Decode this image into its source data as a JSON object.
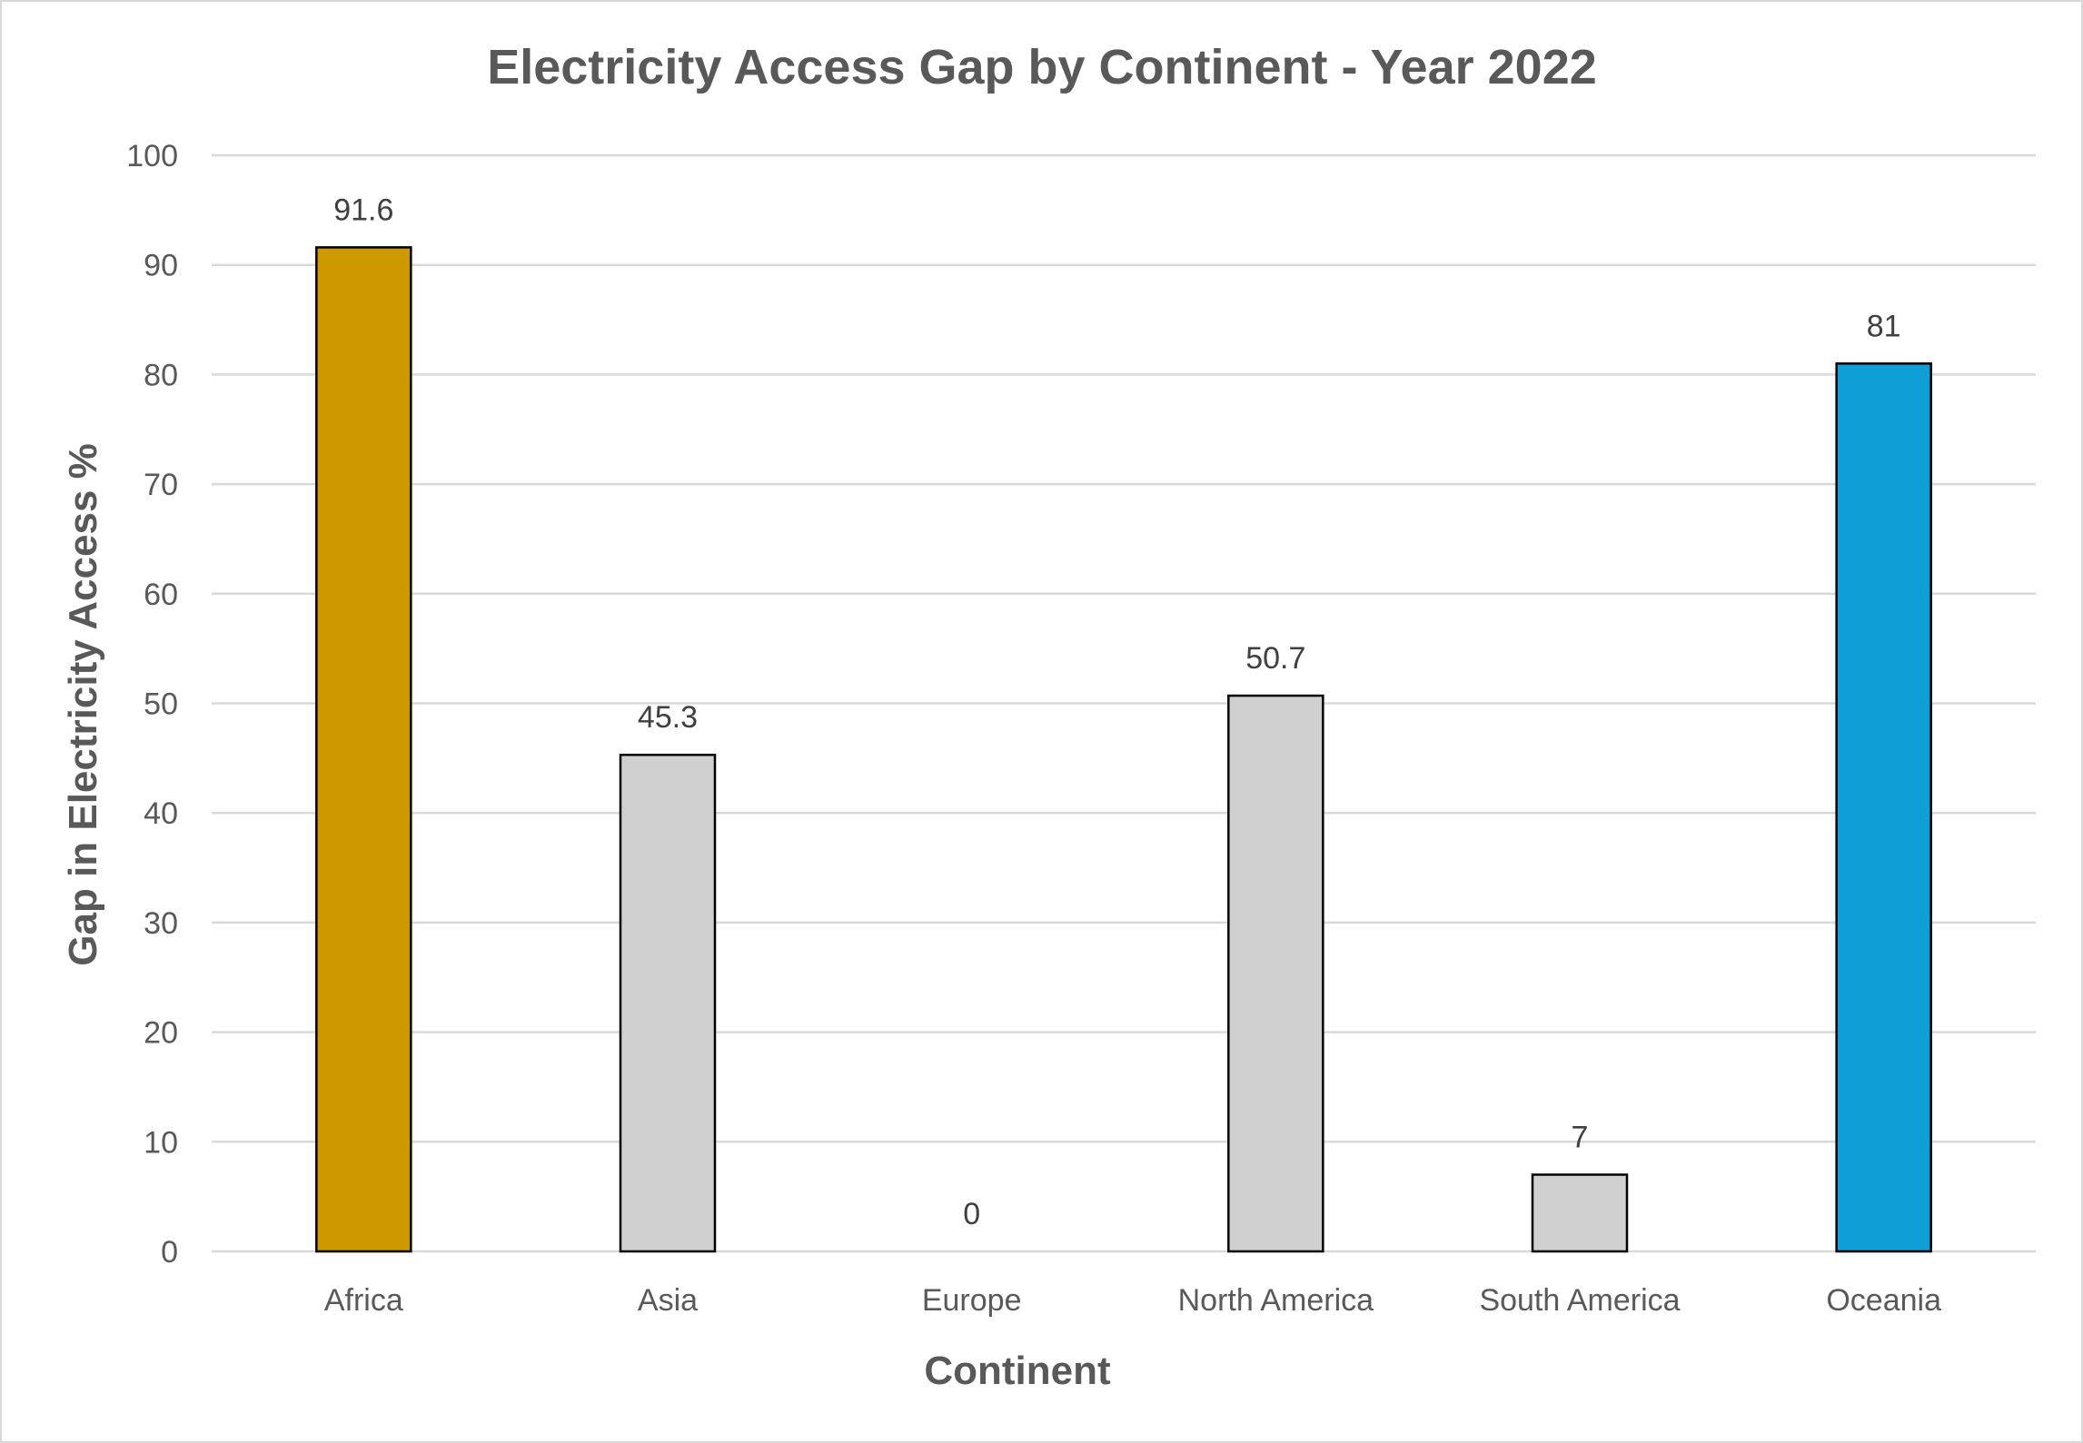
{
  "chart_data": {
    "type": "bar",
    "title": "Electricity Access Gap by Continent - Year 2022",
    "xlabel": "Continent",
    "ylabel": "Gap in Electricity Access %",
    "categories": [
      "Africa",
      "Asia",
      "Europe",
      "North America",
      "South America",
      "Oceania"
    ],
    "values": [
      91.6,
      45.3,
      0,
      50.7,
      7,
      81
    ],
    "data_labels": [
      "91.6",
      "45.3",
      "0",
      "50.7",
      "7",
      "81"
    ],
    "colors": [
      "#CC9900",
      "#D0D0D0",
      "#D0D0D0",
      "#D0D0D0",
      "#D0D0D0",
      "#0F9ED5"
    ],
    "ylim": [
      0,
      100
    ],
    "yticks": [
      "0",
      "10",
      "20",
      "30",
      "40",
      "50",
      "60",
      "70",
      "80",
      "90",
      "100"
    ],
    "grid": true,
    "legend": "none"
  }
}
